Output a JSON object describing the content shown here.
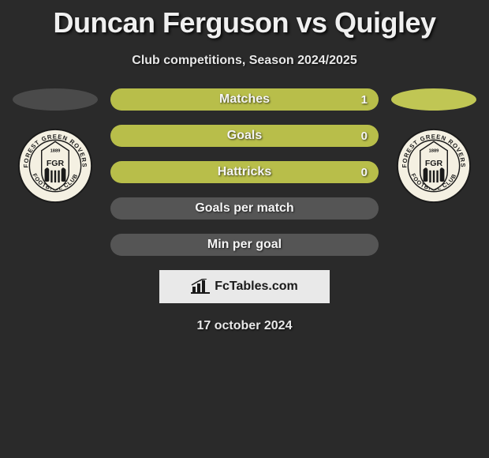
{
  "title": "Duncan Ferguson vs Quigley",
  "subtitle": "Club competitions, Season 2024/2025",
  "stats": [
    {
      "label": "Matches",
      "value": "1",
      "fill": "olive"
    },
    {
      "label": "Goals",
      "value": "0",
      "fill": "olive"
    },
    {
      "label": "Hattricks",
      "value": "0",
      "fill": "olive"
    },
    {
      "label": "Goals per match",
      "value": "",
      "fill": "gray"
    },
    {
      "label": "Min per goal",
      "value": "",
      "fill": "gray"
    }
  ],
  "left_ellipse_color": "#4a4a4a",
  "right_ellipse_color": "#c0c654",
  "stat_colors": {
    "olive": "#b8be4a",
    "gray": "#555555"
  },
  "crest": {
    "text_top": "FOREST GREEN ROVERS",
    "text_bottom": "FOOTBALL CLUB",
    "center_text": "FGR",
    "year": "1889",
    "bg_color": "#f4f0e2",
    "ring_color": "#1a1a1a"
  },
  "footer_brand": "FcTables.com",
  "date": "17 october 2024"
}
